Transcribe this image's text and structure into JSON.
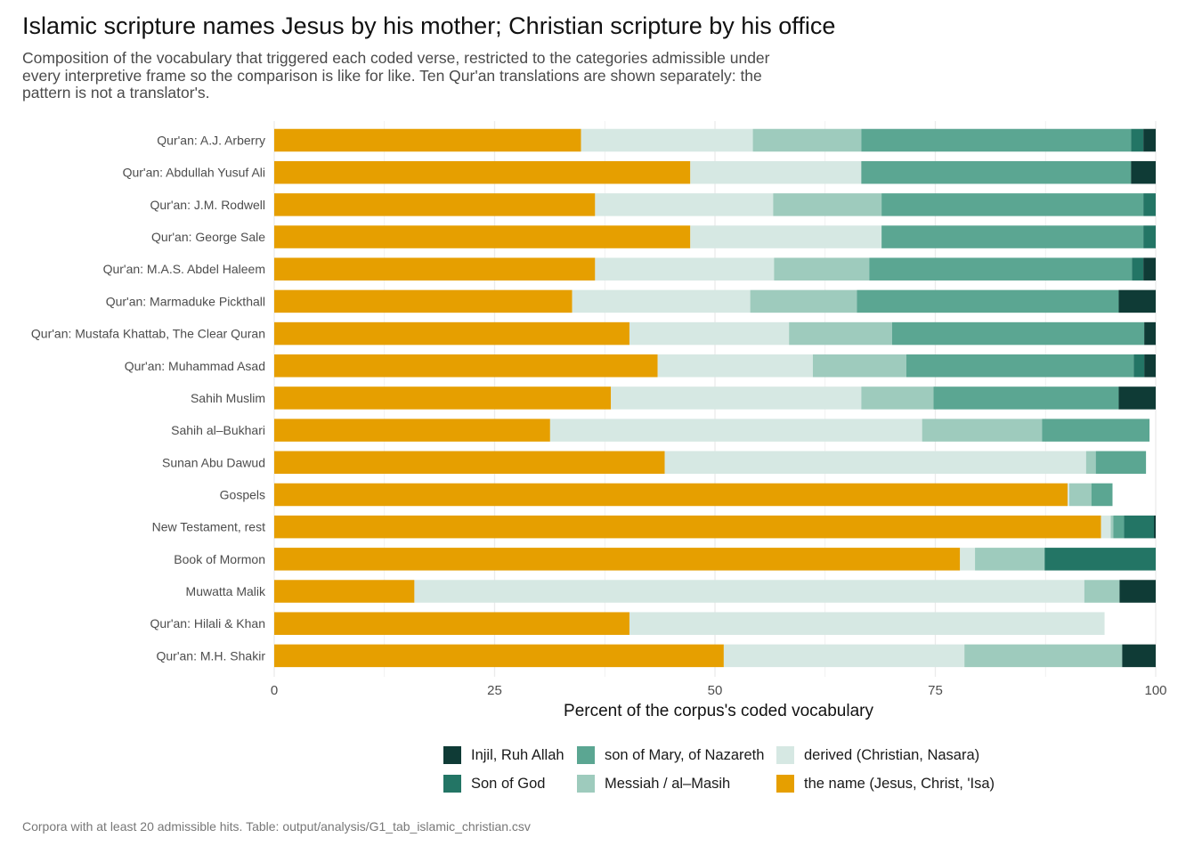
{
  "title": "Islamic scripture names Jesus by his mother; Christian scripture by his office",
  "subtitle": "Composition of the vocabulary that triggered each coded verse, restricted to the categories admissible under every interpretive frame so the comparison is like for like. Ten Qur'an translations are shown separately: the pattern is not a translator's.",
  "caption": "Corpora with at least 20 admissible hits. Table: output/analysis/G1_tab_islamic_christian.csv",
  "colors": {
    "the_name": "#E69F00",
    "derived": "#D6E8E3",
    "messiah": "#9ECBBD",
    "son_of_mary": "#5BA692",
    "son_of_god": "#237565",
    "injil": "#0F3B36"
  },
  "legend": [
    {
      "key": "injil",
      "label": "Injil, Ruh Allah"
    },
    {
      "key": "son_of_mary",
      "label": "son of Mary, of Nazareth"
    },
    {
      "key": "derived",
      "label": "derived (Christian, Nasara)"
    },
    {
      "key": "son_of_god",
      "label": "Son of God"
    },
    {
      "key": "messiah",
      "label": "Messiah / al–Masih"
    },
    {
      "key": "the_name",
      "label": "the name (Jesus, Christ, 'Isa)"
    }
  ],
  "chart_data": {
    "type": "bar",
    "orientation": "horizontal",
    "stacked": true,
    "xlabel": "Percent of the corpus's coded vocabulary",
    "ylabel": "",
    "xlim": [
      0,
      100
    ],
    "xticks": [
      0,
      25,
      50,
      75,
      100
    ],
    "grid": true,
    "legend_position": "bottom",
    "categories": [
      "Qur'an: A.J. Arberry",
      "Qur'an: Abdullah Yusuf Ali",
      "Qur'an: J.M. Rodwell",
      "Qur'an: George Sale",
      "Qur'an: M.A.S. Abdel Haleem",
      "Qur'an: Marmaduke Pickthall",
      "Qur'an: Mustafa Khattab, The Clear Quran",
      "Qur'an: Muhammad Asad",
      "Sahih Muslim",
      "Sahih al–Bukhari",
      "Sunan Abu Dawud",
      "Gospels",
      "New Testament, rest",
      "Book of Mormon",
      "Muwatta Malik",
      "Qur'an: Hilali & Khan",
      "Qur'an: M.H. Shakir"
    ],
    "series": [
      {
        "key": "the_name",
        "name": "the name (Jesus, Christ, 'Isa)",
        "values": [
          34.8,
          47.2,
          36.4,
          47.2,
          36.4,
          33.8,
          40.3,
          43.5,
          38.2,
          31.3,
          44.3,
          90.0,
          93.8,
          77.8,
          15.9,
          40.3,
          51.0
        ]
      },
      {
        "key": "derived",
        "name": "derived (Christian, Nasara)",
        "values": [
          19.5,
          19.4,
          20.2,
          21.7,
          20.3,
          20.2,
          18.1,
          17.6,
          28.4,
          42.2,
          47.8,
          0.2,
          1.1,
          1.7,
          76.0,
          53.9,
          27.3
        ]
      },
      {
        "key": "messiah",
        "name": "Messiah / al–Masih",
        "values": [
          12.3,
          0,
          12.3,
          0,
          10.8,
          12.1,
          11.7,
          10.6,
          8.2,
          13.6,
          1.1,
          2.5,
          0.3,
          7.9,
          4.0,
          0,
          17.9
        ]
      },
      {
        "key": "son_of_mary",
        "name": "son of Mary, of Nazareth",
        "values": [
          30.6,
          30.6,
          29.7,
          29.7,
          29.8,
          29.7,
          28.6,
          25.8,
          21.0,
          12.2,
          5.7,
          2.4,
          1.2,
          0,
          0,
          0,
          0
        ]
      },
      {
        "key": "son_of_god",
        "name": "Son of God",
        "values": [
          1.4,
          0,
          1.4,
          1.4,
          1.3,
          0,
          0,
          1.2,
          0,
          0,
          0,
          0,
          3.4,
          12.6,
          0,
          0,
          0
        ]
      },
      {
        "key": "injil",
        "name": "Injil, Ruh Allah",
        "values": [
          1.4,
          2.8,
          0,
          0,
          1.4,
          4.2,
          1.3,
          1.3,
          4.2,
          0,
          0,
          0,
          0.2,
          0,
          4.1,
          0,
          3.8
        ]
      }
    ]
  }
}
